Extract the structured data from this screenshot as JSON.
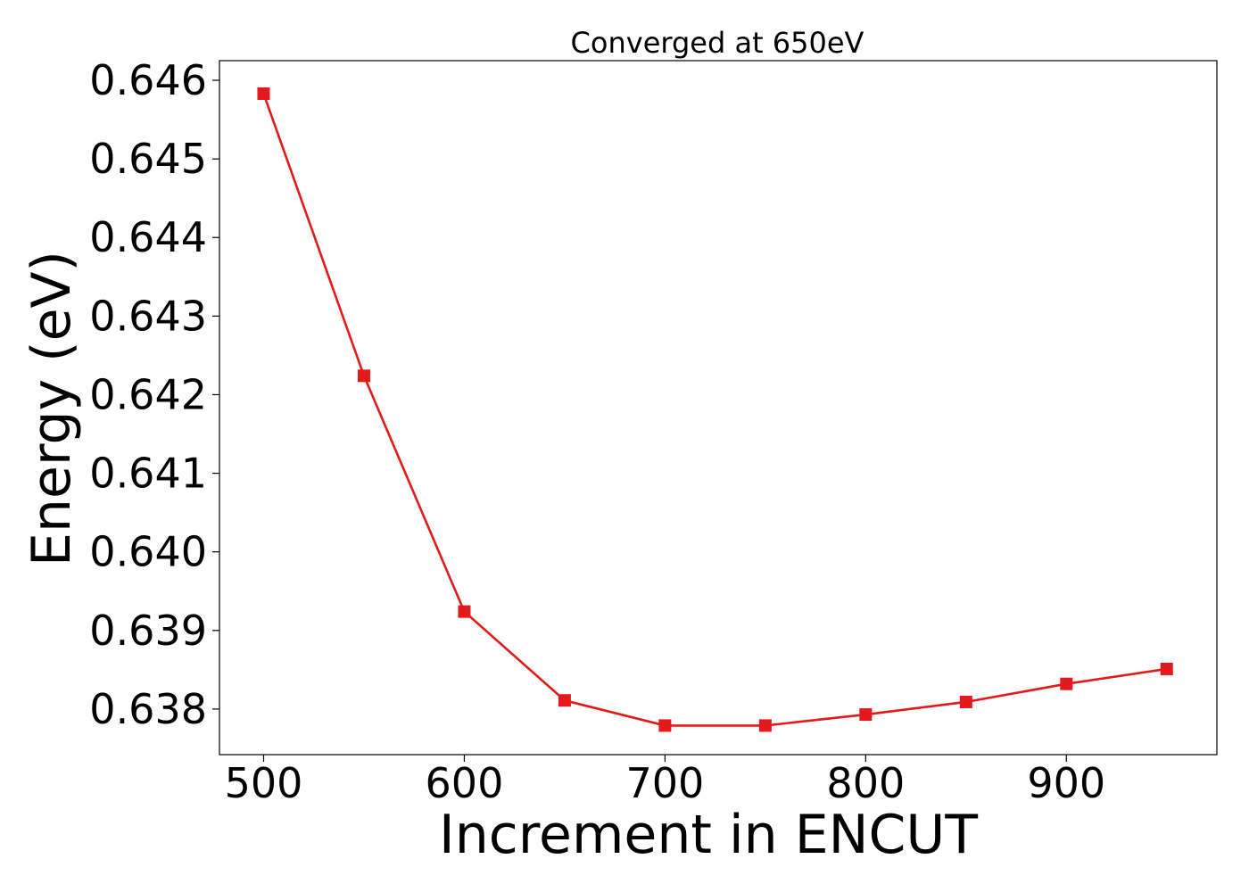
{
  "chart_data": {
    "type": "line",
    "title": "Converged at 650eV",
    "xlabel": "Increment in ENCUT",
    "ylabel": "Energy (eV)",
    "x": [
      500,
      550,
      600,
      650,
      700,
      750,
      800,
      850,
      900,
      950
    ],
    "series": [
      {
        "values": [
          0.64583,
          0.64224,
          0.63924,
          0.63811,
          0.63779,
          0.63779,
          0.63793,
          0.63809,
          0.63832,
          0.63851
        ],
        "color": "#e31a1c",
        "marker": "square"
      }
    ],
    "xlim": [
      478,
      975
    ],
    "ylim": [
      0.63742,
      0.64625
    ],
    "xticks": [
      500,
      600,
      700,
      800,
      900
    ],
    "xtick_labels": [
      "500",
      "600",
      "700",
      "800",
      "900"
    ],
    "yticks": [
      0.638,
      0.639,
      0.64,
      0.641,
      0.642,
      0.643,
      0.644,
      0.645,
      0.646
    ],
    "ytick_labels": [
      "0.638",
      "0.639",
      "0.640",
      "0.641",
      "0.642",
      "0.643",
      "0.644",
      "0.645",
      "0.646"
    ],
    "grid": false,
    "legend": "none"
  }
}
